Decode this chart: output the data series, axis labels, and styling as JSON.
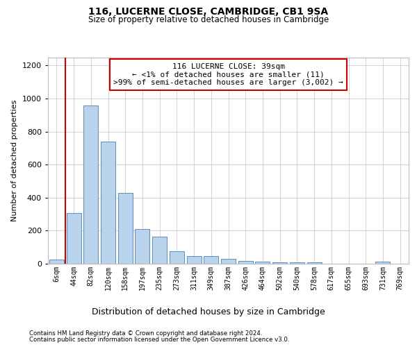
{
  "title": "116, LUCERNE CLOSE, CAMBRIDGE, CB1 9SA",
  "subtitle": "Size of property relative to detached houses in Cambridge",
  "xlabel": "Distribution of detached houses by size in Cambridge",
  "ylabel": "Number of detached properties",
  "bar_color": "#b8d3ea",
  "bar_edge_color": "#5a8fc2",
  "annotation_line_color": "#cc0000",
  "annotation_box_color": "#cc0000",
  "annotation_text": "116 LUCERNE CLOSE: 39sqm\n← <1% of detached houses are smaller (11)\n>99% of semi-detached houses are larger (3,002) →",
  "categories": [
    "6sqm",
    "44sqm",
    "82sqm",
    "120sqm",
    "158sqm",
    "197sqm",
    "235sqm",
    "273sqm",
    "311sqm",
    "349sqm",
    "387sqm",
    "426sqm",
    "464sqm",
    "502sqm",
    "540sqm",
    "578sqm",
    "617sqm",
    "655sqm",
    "693sqm",
    "731sqm",
    "769sqm"
  ],
  "values": [
    25,
    305,
    960,
    740,
    430,
    210,
    165,
    75,
    47,
    45,
    30,
    18,
    12,
    10,
    10,
    10,
    0,
    0,
    0,
    12,
    0
  ],
  "ylim": [
    0,
    1250
  ],
  "yticks": [
    0,
    200,
    400,
    600,
    800,
    1000,
    1200
  ],
  "footnote1": "Contains HM Land Registry data © Crown copyright and database right 2024.",
  "footnote2": "Contains public sector information licensed under the Open Government Licence v3.0."
}
